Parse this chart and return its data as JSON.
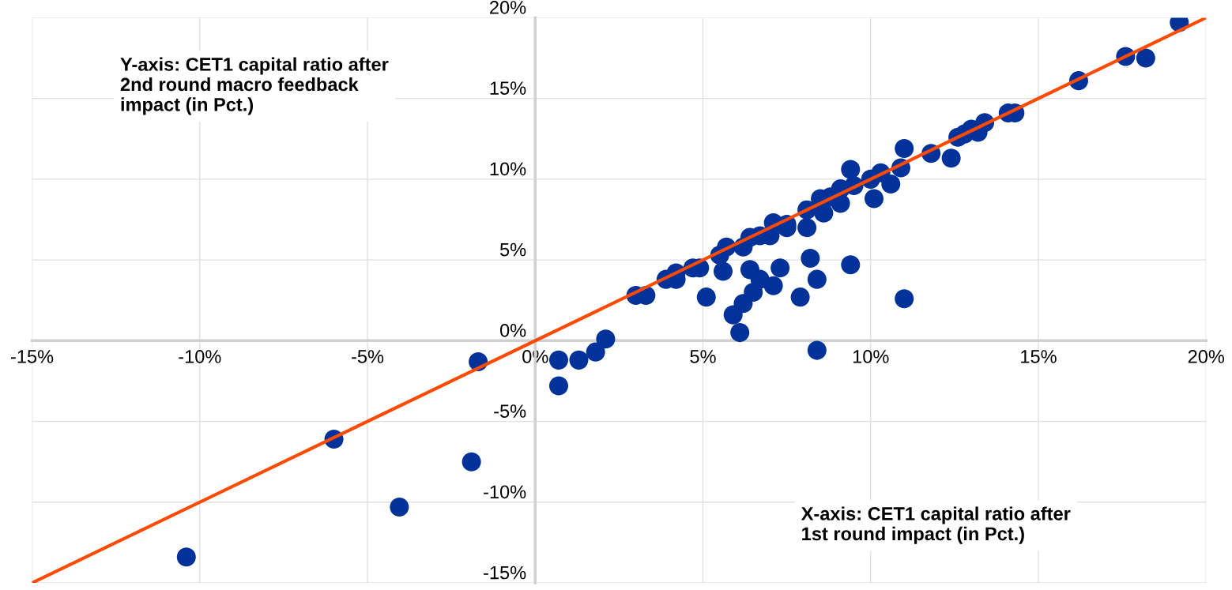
{
  "chart_data": {
    "type": "scatter",
    "xlabel": "X-axis: CET1 capital ratio after\n1st round impact (in Pct.)",
    "ylabel": "Y-axis: CET1 capital ratio after\n2nd round macro feedback\nimpact (in Pct.)",
    "xlim": [
      -15,
      20
    ],
    "ylim": [
      -15,
      20
    ],
    "xticks": [
      {
        "value": -15,
        "label": "-15%"
      },
      {
        "value": -10,
        "label": "-10%"
      },
      {
        "value": -5,
        "label": "-5%"
      },
      {
        "value": 0,
        "label": "0%"
      },
      {
        "value": 5,
        "label": "5%"
      },
      {
        "value": 10,
        "label": "10%"
      },
      {
        "value": 15,
        "label": "15%"
      },
      {
        "value": 20,
        "label": "20%"
      }
    ],
    "yticks": [
      {
        "value": -15,
        "label": "-15%"
      },
      {
        "value": -10,
        "label": "-10%"
      },
      {
        "value": -5,
        "label": "-5%"
      },
      {
        "value": 0,
        "label": "0%"
      },
      {
        "value": 5,
        "label": "5%"
      },
      {
        "value": 10,
        "label": "10%"
      },
      {
        "value": 15,
        "label": "15%"
      },
      {
        "value": 20,
        "label": "20%"
      }
    ],
    "grid": true,
    "series": [
      {
        "marker": "circle",
        "color": "#003299",
        "x": [
          -10.4,
          -4.05,
          -6.0,
          -1.9,
          -1.7,
          0.7,
          0.7,
          1.3,
          1.8,
          2.1,
          3.0,
          3.3,
          3.9,
          4.2,
          4.2,
          4.7,
          4.9,
          5.1,
          5.6,
          5.9,
          6.1,
          6.2,
          6.5,
          6.4,
          6.7,
          7.1,
          7.3,
          7.9,
          8.2,
          8.4,
          8.4,
          9.4,
          11.0,
          5.5,
          5.7,
          6.2,
          6.4,
          6.7,
          7.0,
          7.1,
          7.5,
          7.5,
          8.1,
          8.1,
          8.6,
          8.5,
          8.8,
          9.1,
          9.1,
          9.4,
          9.5,
          10.0,
          10.1,
          10.3,
          10.6,
          10.9,
          11.0,
          11.8,
          12.4,
          12.6,
          12.8,
          13.0,
          13.2,
          13.4,
          14.1,
          14.3,
          16.2,
          17.6,
          18.2,
          19.2
        ],
        "values": [
          -13.4,
          -10.3,
          -6.1,
          -7.5,
          -1.3,
          -1.2,
          -2.8,
          -1.2,
          -0.7,
          0.1,
          2.8,
          2.8,
          3.8,
          4.2,
          3.8,
          4.5,
          4.5,
          2.7,
          4.3,
          1.6,
          0.5,
          2.3,
          3.0,
          4.4,
          3.8,
          3.4,
          4.5,
          2.7,
          5.1,
          3.8,
          -0.6,
          4.7,
          2.6,
          5.3,
          5.8,
          5.8,
          6.4,
          6.5,
          6.5,
          7.3,
          7.0,
          7.2,
          7.0,
          8.1,
          7.9,
          8.8,
          8.9,
          8.5,
          9.4,
          10.6,
          9.6,
          10.0,
          8.8,
          10.4,
          9.7,
          10.7,
          11.9,
          11.6,
          11.3,
          12.6,
          12.8,
          13.1,
          12.9,
          13.5,
          14.1,
          14.1,
          16.1,
          17.6,
          17.5,
          19.7
        ]
      },
      {
        "type": "line",
        "color": "#ff4b00",
        "x": [
          -15,
          20
        ],
        "values": [
          -15,
          20
        ]
      }
    ]
  }
}
